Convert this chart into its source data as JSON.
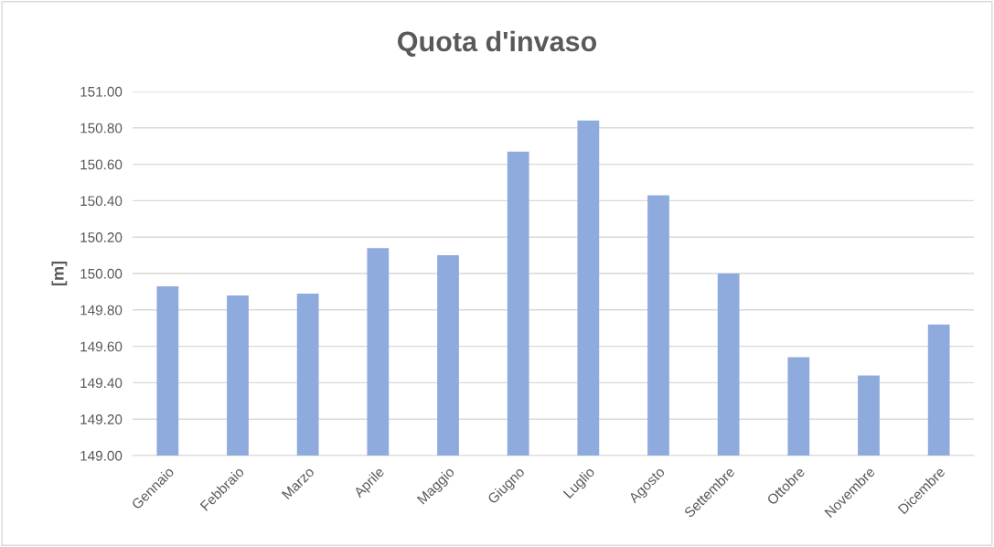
{
  "chart_data": {
    "type": "bar",
    "title": "Quota d'invaso",
    "ylabel": "[m]",
    "categories": [
      "Gennaio",
      "Febbraio",
      "Marzo",
      "Aprile",
      "Maggio",
      "Giugno",
      "Luglio",
      "Agosto",
      "Settembre",
      "Ottobre",
      "Novembre",
      "Dicembre"
    ],
    "values": [
      149.93,
      149.88,
      149.89,
      150.14,
      150.1,
      150.67,
      150.84,
      150.43,
      150.0,
      149.54,
      149.44,
      149.72
    ],
    "color": "#8faadc",
    "ylim": [
      149.0,
      151.0
    ],
    "yticks": [
      {
        "value": 149.0,
        "label": "149.00"
      },
      {
        "value": 149.2,
        "label": "149.20"
      },
      {
        "value": 149.4,
        "label": "149.40"
      },
      {
        "value": 149.6,
        "label": "149.60"
      },
      {
        "value": 149.8,
        "label": "149.80"
      },
      {
        "value": 150.0,
        "label": "150.00"
      },
      {
        "value": 150.2,
        "label": "150.20"
      },
      {
        "value": 150.4,
        "label": "150.40"
      },
      {
        "value": 150.6,
        "label": "150.60"
      },
      {
        "value": 150.8,
        "label": "150.80"
      },
      {
        "value": 151.0,
        "label": "151.00"
      }
    ],
    "grid": "y"
  }
}
